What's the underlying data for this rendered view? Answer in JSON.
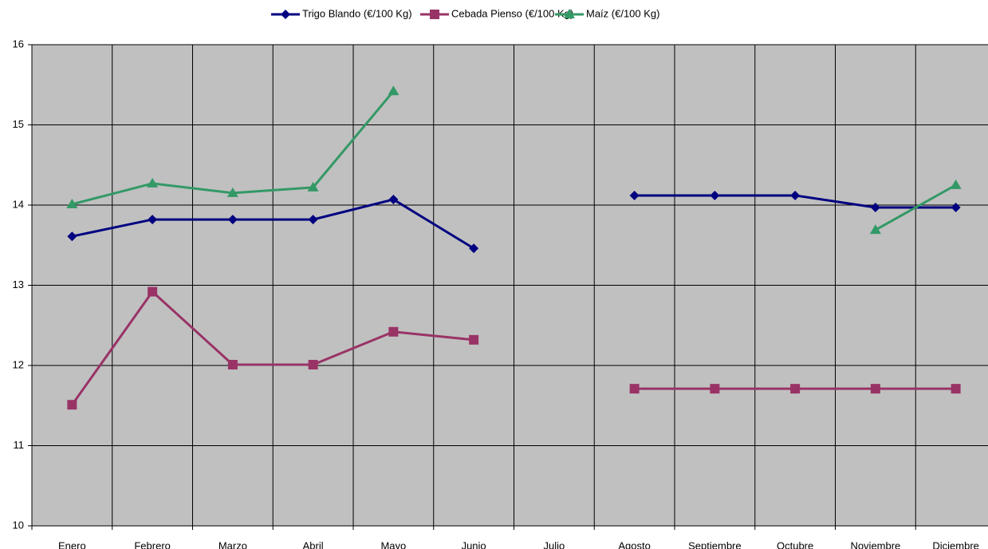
{
  "chart_data": {
    "type": "line",
    "categories": [
      "Enero",
      "Febrero",
      "Marzo",
      "Abril",
      "Mayo",
      "Junio",
      "Julio",
      "Agosto",
      "Septiembre",
      "Octubre",
      "Noviembre",
      "Diciembre"
    ],
    "series": [
      {
        "name": "Trigo Blando (€/100 Kg)",
        "color": "#000080",
        "marker": "diamond",
        "values": [
          13.61,
          13.82,
          13.82,
          13.82,
          14.07,
          13.46,
          null,
          14.12,
          14.12,
          14.12,
          13.97,
          13.97
        ]
      },
      {
        "name": "Cebada Pienso (€/100 Kg)",
        "color": "#993366",
        "marker": "square",
        "values": [
          11.51,
          12.92,
          12.01,
          12.01,
          12.42,
          12.32,
          null,
          11.71,
          11.71,
          11.71,
          11.71,
          11.71
        ]
      },
      {
        "name": "Maíz (€/100 Kg)",
        "color": "#339966",
        "marker": "triangle",
        "values": [
          14.01,
          14.27,
          14.15,
          14.22,
          15.42,
          null,
          null,
          null,
          null,
          null,
          13.69,
          14.25
        ]
      }
    ],
    "ylim": [
      10,
      16
    ],
    "yticks": [
      10,
      11,
      12,
      13,
      14,
      15,
      16
    ],
    "grid": true,
    "legend": "top"
  }
}
